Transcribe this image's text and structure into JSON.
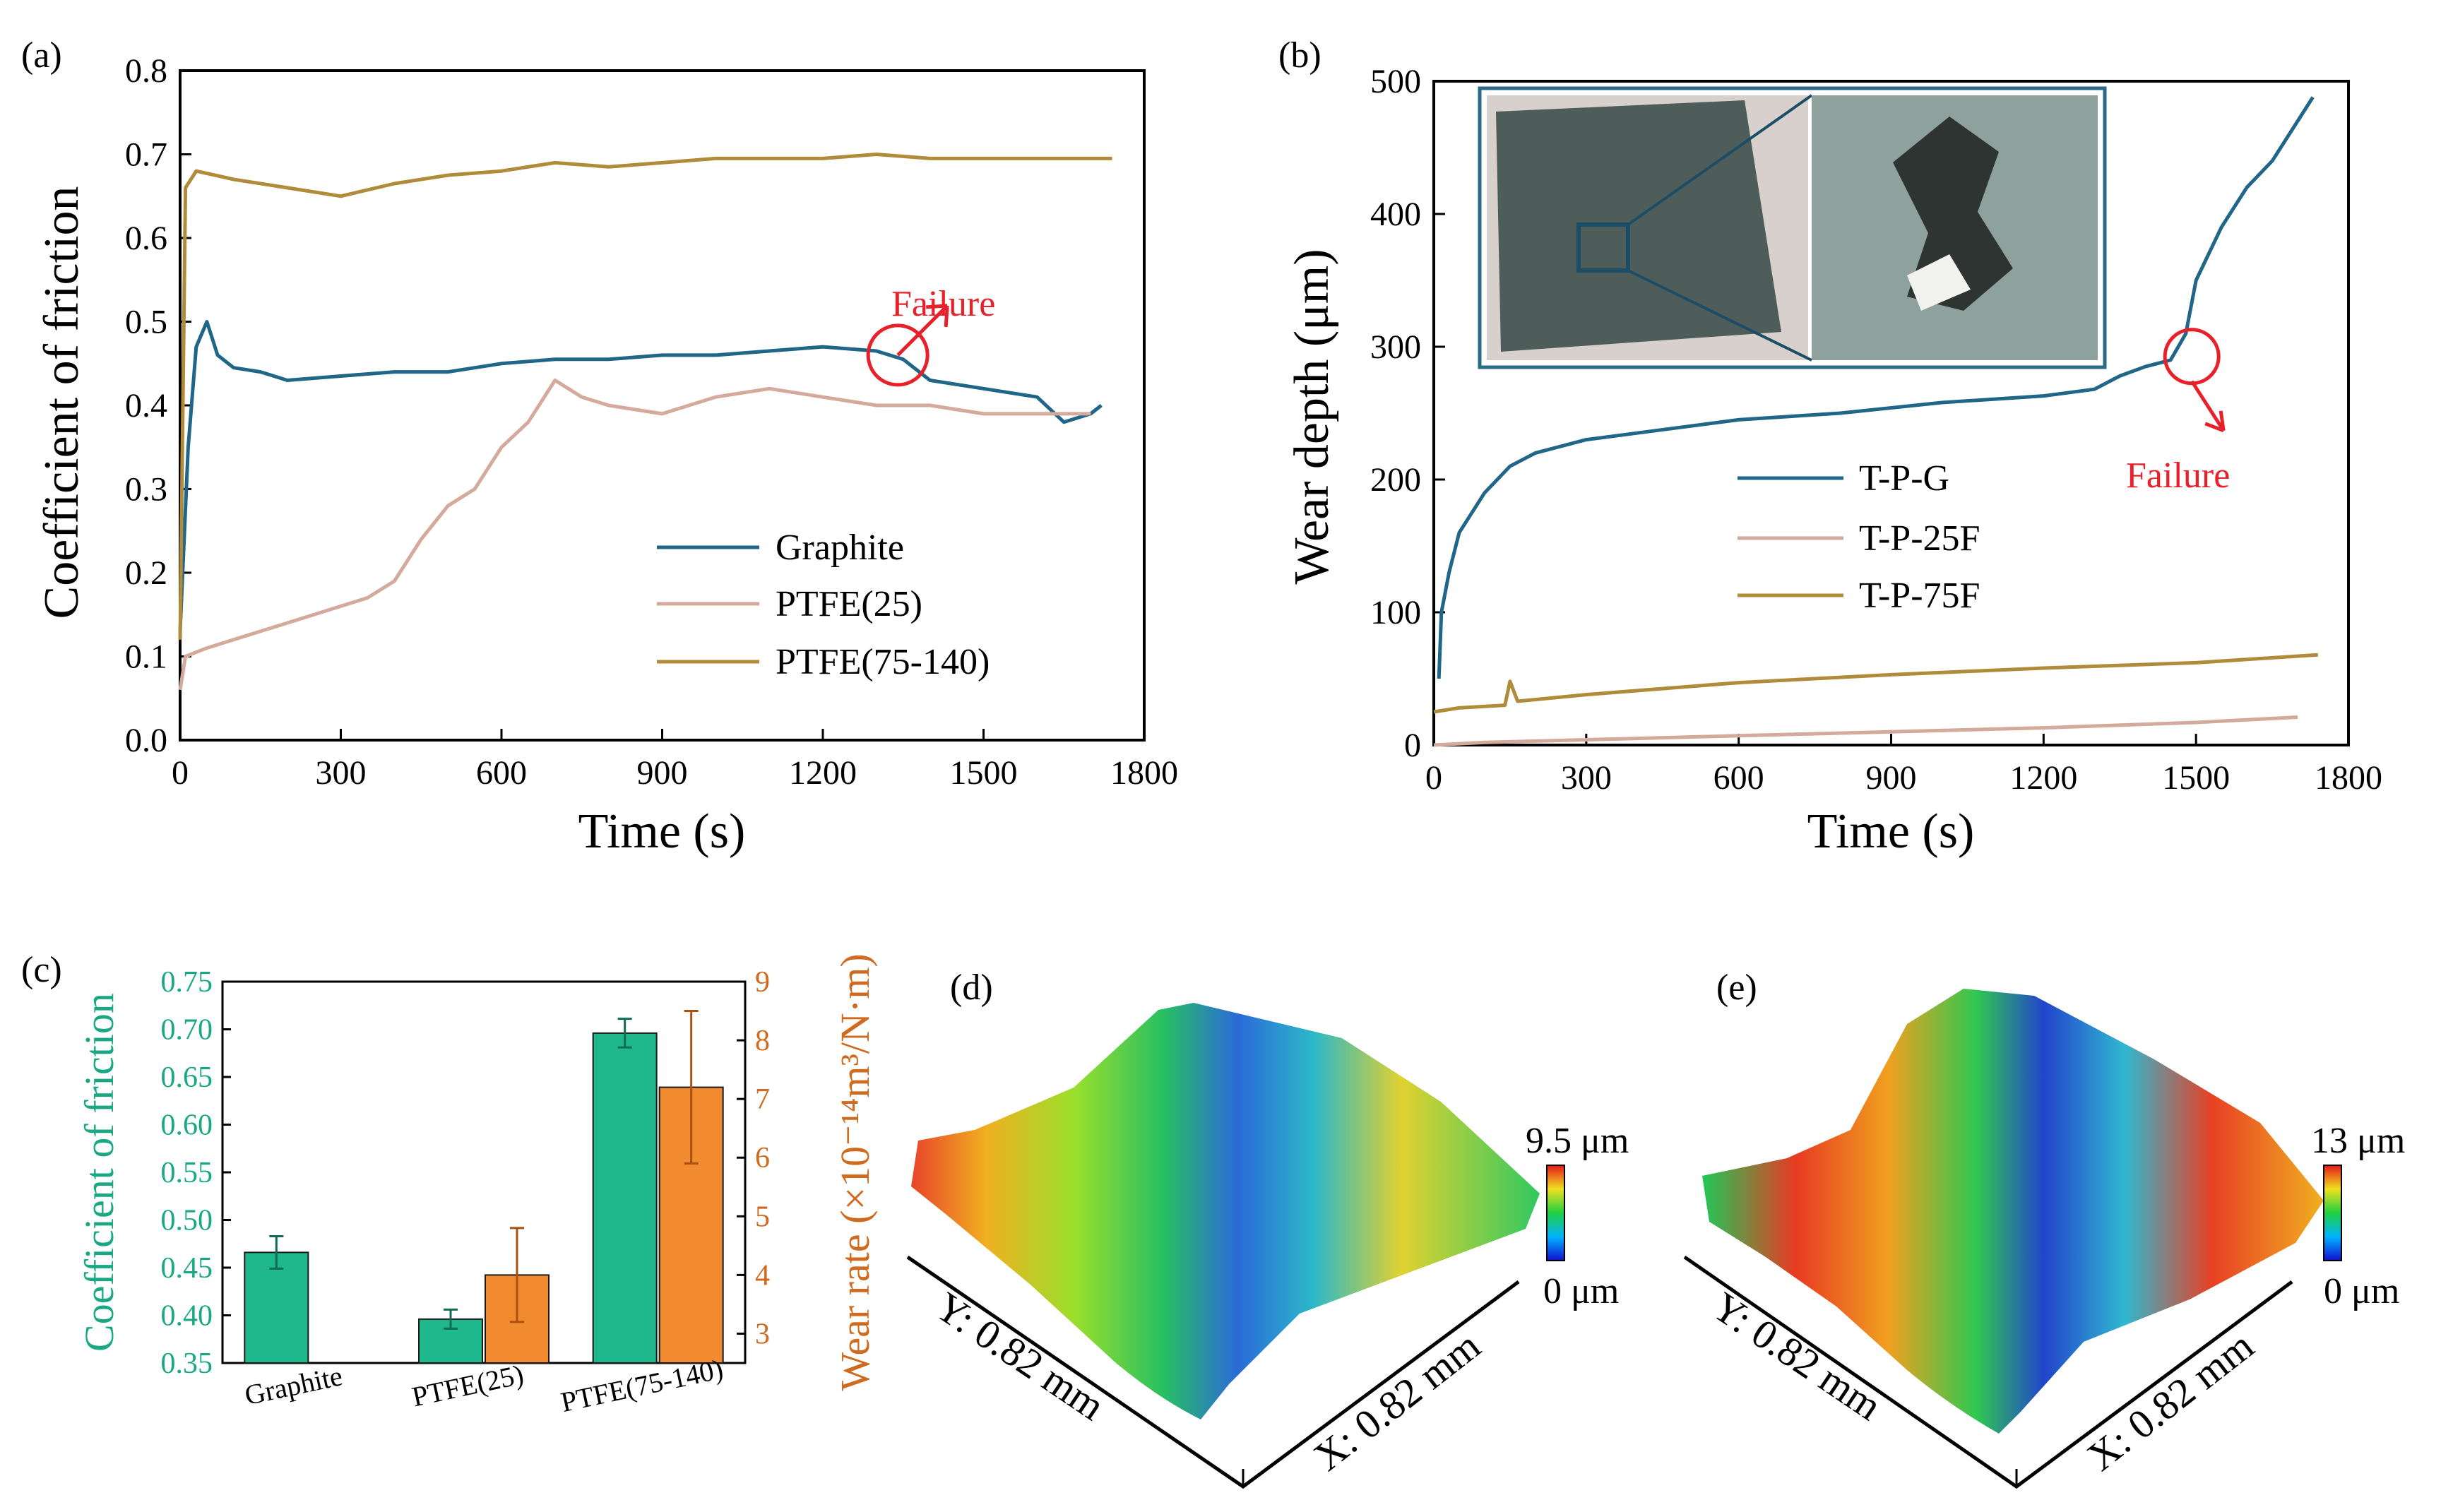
{
  "colors": {
    "graphite": "#1f6688",
    "ptfe25": "#d4aa9c",
    "ptfe75": "#b08c3a",
    "failure": "#e8202a",
    "cof_axis": "#1aa884",
    "wear_axis": "#d06a1e",
    "cof_bar": "#1fb88d",
    "wear_bar": "#f28a30"
  },
  "chart_data": [
    {
      "panel": "(a)",
      "type": "line",
      "xlabel": "Time (s)",
      "ylabel": "Coefficient of friction",
      "xlim": [
        0,
        1800
      ],
      "ylim": [
        0.0,
        0.8
      ],
      "xticks": [
        "0",
        "300",
        "600",
        "900",
        "1200",
        "1500",
        "1800"
      ],
      "yticks": [
        "0.0",
        "0.1",
        "0.2",
        "0.3",
        "0.4",
        "0.5",
        "0.6",
        "0.7",
        "0.8"
      ],
      "annotation": "Failure",
      "failure_point": [
        1340,
        0.46
      ],
      "series": [
        {
          "name": "Graphite",
          "color_key": "graphite",
          "x": [
            0,
            15,
            30,
            50,
            70,
            100,
            150,
            200,
            300,
            400,
            500,
            600,
            700,
            800,
            900,
            1000,
            1100,
            1200,
            1300,
            1350,
            1400,
            1500,
            1600,
            1650,
            1700,
            1720
          ],
          "y": [
            0.13,
            0.35,
            0.47,
            0.5,
            0.46,
            0.445,
            0.44,
            0.43,
            0.435,
            0.44,
            0.44,
            0.45,
            0.455,
            0.455,
            0.46,
            0.46,
            0.465,
            0.47,
            0.465,
            0.455,
            0.43,
            0.42,
            0.41,
            0.38,
            0.39,
            0.4
          ]
        },
        {
          "name": "PTFE(25)",
          "color_key": "ptfe25",
          "x": [
            0,
            10,
            50,
            100,
            200,
            300,
            350,
            400,
            450,
            500,
            550,
            600,
            650,
            700,
            750,
            800,
            900,
            1000,
            1100,
            1200,
            1300,
            1400,
            1500,
            1600,
            1700
          ],
          "y": [
            0.06,
            0.1,
            0.11,
            0.12,
            0.14,
            0.16,
            0.17,
            0.19,
            0.24,
            0.28,
            0.3,
            0.35,
            0.38,
            0.43,
            0.41,
            0.4,
            0.39,
            0.41,
            0.42,
            0.41,
            0.4,
            0.4,
            0.39,
            0.39,
            0.39
          ]
        },
        {
          "name": "PTFE(75-140)",
          "color_key": "ptfe75",
          "x": [
            0,
            10,
            30,
            100,
            200,
            300,
            400,
            500,
            600,
            700,
            800,
            900,
            1000,
            1100,
            1200,
            1300,
            1400,
            1500,
            1600,
            1700,
            1740
          ],
          "y": [
            0.12,
            0.66,
            0.68,
            0.67,
            0.66,
            0.65,
            0.665,
            0.675,
            0.68,
            0.69,
            0.685,
            0.69,
            0.695,
            0.695,
            0.695,
            0.7,
            0.695,
            0.695,
            0.695,
            0.695,
            0.695
          ]
        }
      ]
    },
    {
      "panel": "(b)",
      "type": "line",
      "xlabel": "Time (s)",
      "ylabel": "Wear depth (μm)",
      "xlim": [
        0,
        1800
      ],
      "ylim": [
        0,
        500
      ],
      "xticks": [
        "0",
        "300",
        "600",
        "900",
        "1200",
        "1500",
        "1800"
      ],
      "yticks": [
        "0",
        "100",
        "200",
        "300",
        "400",
        "500"
      ],
      "annotation": "Failure",
      "failure_point": [
        1450,
        290
      ],
      "series": [
        {
          "name": "T-P-G",
          "color_key": "graphite",
          "x": [
            10,
            15,
            30,
            50,
            100,
            150,
            200,
            300,
            400,
            600,
            800,
            1000,
            1200,
            1300,
            1350,
            1400,
            1450,
            1480,
            1500,
            1550,
            1600,
            1650,
            1700,
            1730
          ],
          "y": [
            50,
            100,
            130,
            160,
            190,
            210,
            220,
            230,
            235,
            245,
            250,
            258,
            263,
            268,
            278,
            285,
            290,
            310,
            350,
            390,
            420,
            440,
            470,
            488
          ]
        },
        {
          "name": "T-P-25F",
          "color_key": "ptfe25",
          "x": [
            0,
            100,
            300,
            600,
            900,
            1200,
            1500,
            1700
          ],
          "y": [
            0,
            2,
            4,
            7,
            10,
            13,
            17,
            21
          ]
        },
        {
          "name": "T-P-75F",
          "color_key": "ptfe75",
          "x": [
            0,
            50,
            140,
            150,
            165,
            300,
            600,
            900,
            1200,
            1500,
            1740
          ],
          "y": [
            25,
            28,
            30,
            48,
            33,
            38,
            47,
            53,
            58,
            62,
            68
          ]
        }
      ]
    },
    {
      "panel": "(c)",
      "type": "bar",
      "categories": [
        "Graphite",
        "PTFE(25)",
        "PTFE(75-140)"
      ],
      "ylabel": "Coefficient of friction",
      "y2label": "Wear rate (×10⁻¹⁴m³/N·m)",
      "ylim": [
        0.35,
        0.75
      ],
      "y2lim": [
        2.5,
        9
      ],
      "yticks": [
        "0.35",
        "0.40",
        "0.45",
        "0.50",
        "0.55",
        "0.60",
        "0.65",
        "0.70",
        "0.75"
      ],
      "y2ticks": [
        "3",
        "4",
        "5",
        "6",
        "7",
        "8",
        "9"
      ],
      "series": [
        {
          "name": "Coefficient of friction",
          "axis": "left",
          "color_key": "cof_bar",
          "values": [
            0.466,
            0.396,
            0.696
          ],
          "errors": [
            0.017,
            0.01,
            0.015
          ]
        },
        {
          "name": "Wear rate",
          "axis": "right",
          "color_key": "wear_bar",
          "values": [
            null,
            4.0,
            7.2
          ],
          "errors": [
            null,
            0.8,
            1.3
          ]
        }
      ]
    }
  ],
  "surfaces": [
    {
      "panel": "(d)",
      "max_label": "9.5 μm",
      "min_label": "0 μm",
      "y_axis": "Y: 0.82 mm",
      "x_axis": "X: 0.82 mm"
    },
    {
      "panel": "(e)",
      "max_label": "13 μm",
      "min_label": "0 μm",
      "y_axis": "Y: 0.82 mm",
      "x_axis": "X: 0.82 mm"
    }
  ]
}
